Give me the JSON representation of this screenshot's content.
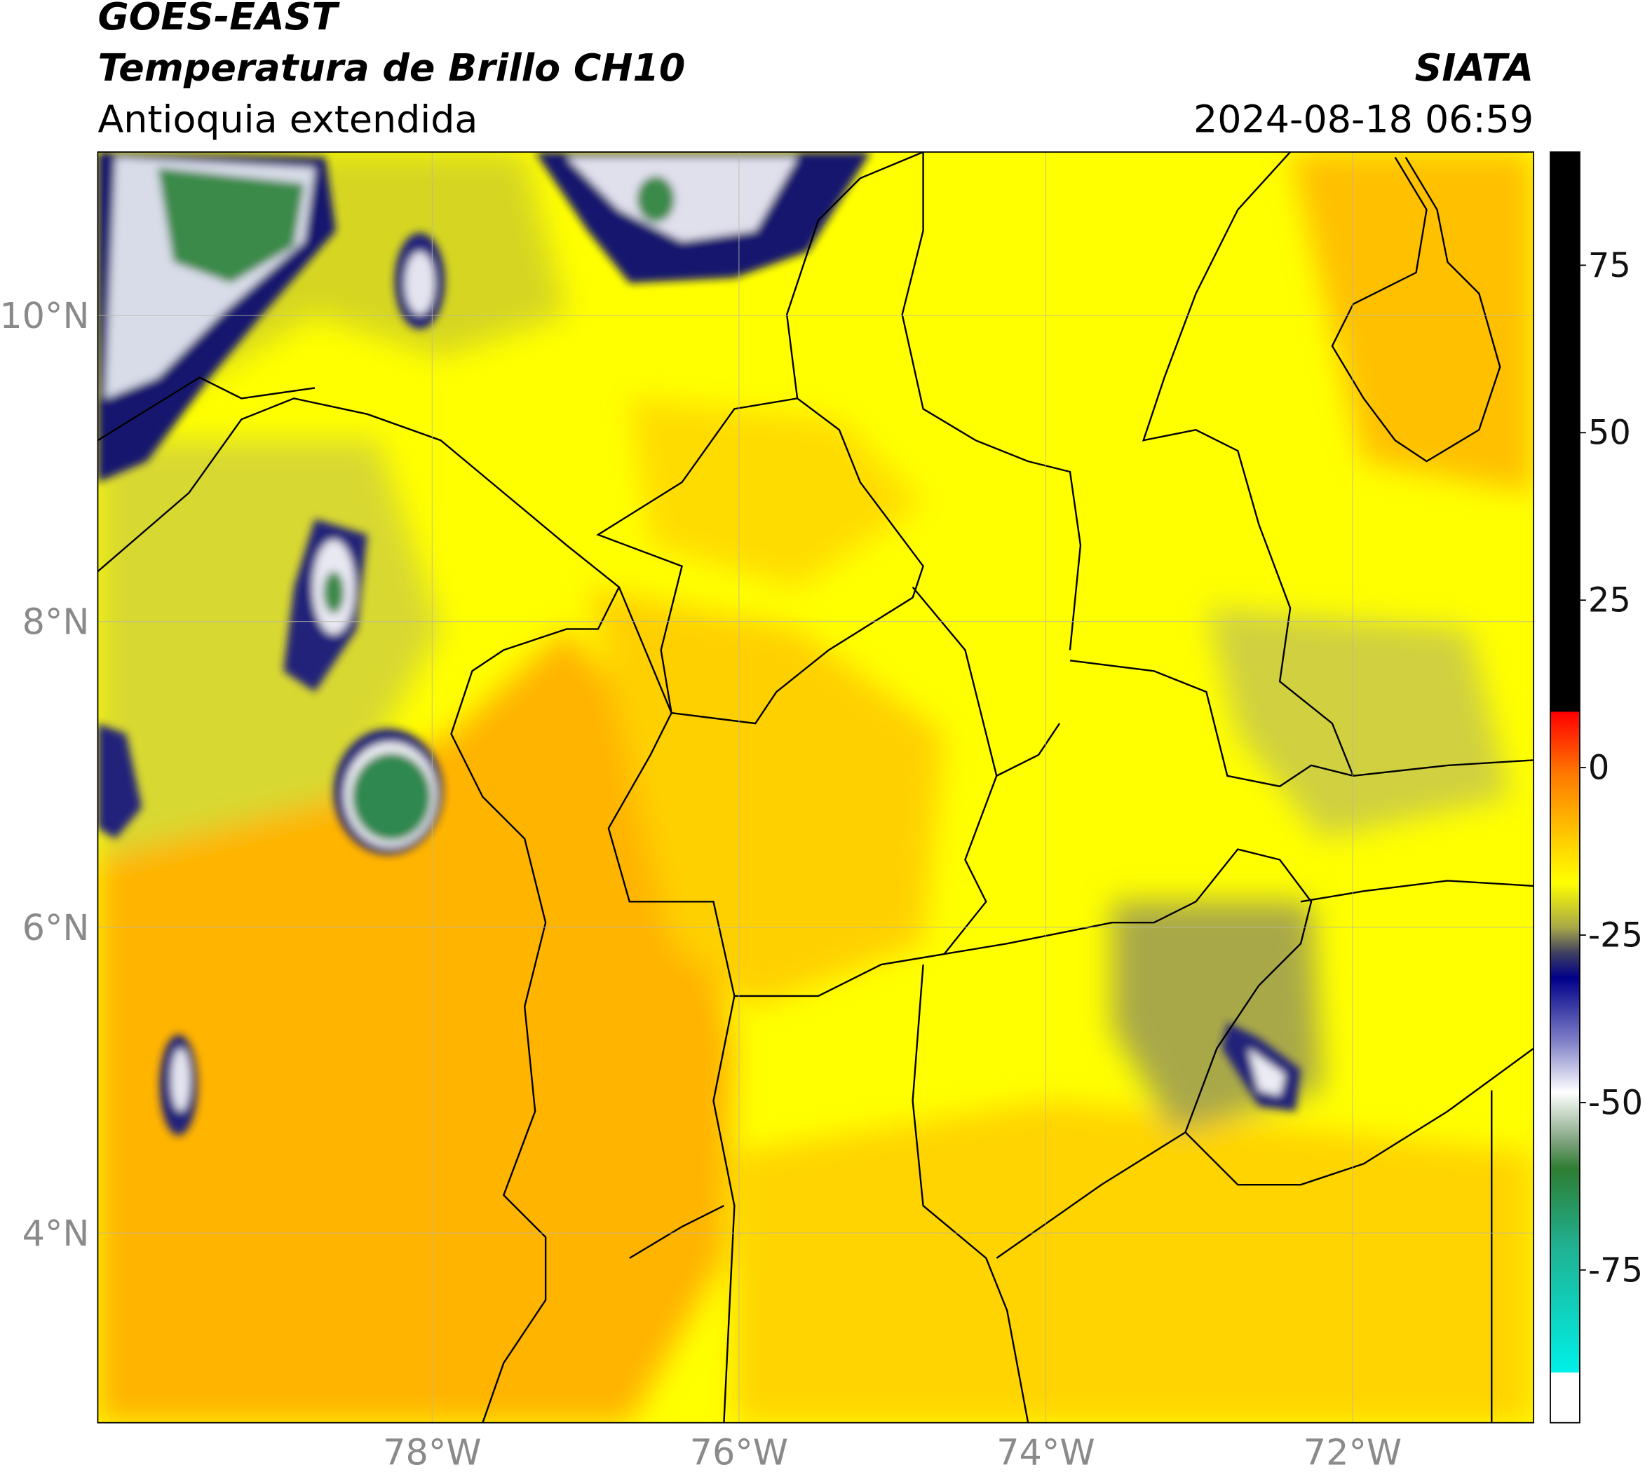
{
  "header": {
    "title": "GOES-EAST",
    "subtitle": "Temperatura de Brillo CH10",
    "region": "Antioquia extendida",
    "source": "SIATA",
    "datetime": "2024-08-18 06:59"
  },
  "map": {
    "xlim": [
      -80.18,
      -70.82
    ],
    "ylim": [
      2.76,
      11.07
    ],
    "xticks": [
      {
        "value": -78,
        "label": "78°W"
      },
      {
        "value": -76,
        "label": "76°W"
      },
      {
        "value": -74,
        "label": "74°W"
      },
      {
        "value": -72,
        "label": "72°W"
      }
    ],
    "yticks": [
      {
        "value": 10,
        "label": "10°N"
      },
      {
        "value": 8,
        "label": "8°N"
      },
      {
        "value": 6,
        "label": "6°N"
      },
      {
        "value": 4,
        "label": "4°N"
      }
    ],
    "grid": true
  },
  "colorbar": {
    "lim": [
      -97.8,
      91.9
    ],
    "ticks": [
      75,
      50,
      25,
      0,
      -25,
      -50,
      -75
    ]
  }
}
